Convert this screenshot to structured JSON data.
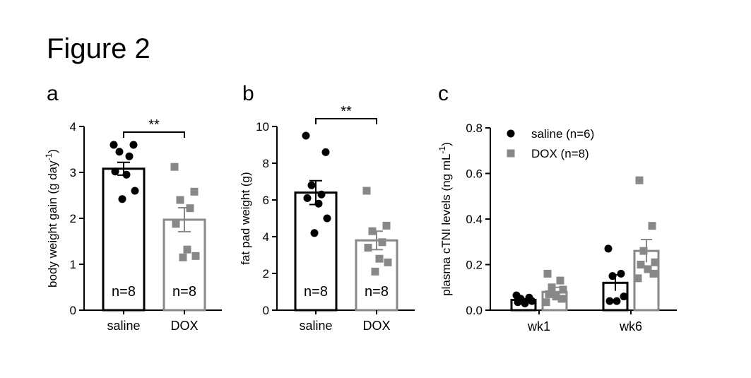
{
  "figure_title": "Figure 2",
  "colors": {
    "black": "#000000",
    "gray": "#888888"
  },
  "chart_data": [
    {
      "panel": "a",
      "type": "bar",
      "ylabel": "body weight gain (g day",
      "ylabel_sup": "-1",
      "ylabel_end": ")",
      "ylim": [
        0,
        4
      ],
      "yticks": [
        "0",
        "1",
        "2",
        "3",
        "4"
      ],
      "categories": [
        "saline",
        "DOX"
      ],
      "bars": [
        {
          "category": "saline",
          "mean": 3.08,
          "sem": 0.14,
          "color": "#000000",
          "marker": "circle",
          "n_label": "n=8",
          "points": [
            3.6,
            3.6,
            3.45,
            3.35,
            3.02,
            2.95,
            2.6,
            2.42
          ]
        },
        {
          "category": "DOX",
          "mean": 1.97,
          "sem": 0.26,
          "color": "#888888",
          "marker": "square",
          "n_label": "n=8",
          "points": [
            3.12,
            2.58,
            2.4,
            2.22,
            1.88,
            1.32,
            1.18,
            1.15
          ]
        }
      ],
      "significance": "**"
    },
    {
      "panel": "b",
      "type": "bar",
      "ylabel": "fat pad weight (g)",
      "ylim": [
        0,
        10
      ],
      "yticks": [
        "0",
        "2",
        "4",
        "6",
        "8",
        "10"
      ],
      "categories": [
        "saline",
        "DOX"
      ],
      "bars": [
        {
          "category": "saline",
          "mean": 6.4,
          "sem": 0.65,
          "color": "#000000",
          "marker": "circle",
          "n_label": "n=8",
          "points": [
            9.5,
            8.6,
            6.8,
            6.3,
            6.1,
            5.8,
            5.0,
            4.2
          ]
        },
        {
          "category": "DOX",
          "mean": 3.8,
          "sem": 0.5,
          "color": "#888888",
          "marker": "square",
          "n_label": "n=8",
          "points": [
            6.5,
            4.6,
            4.3,
            3.7,
            3.4,
            2.8,
            2.6,
            2.1
          ]
        }
      ],
      "significance": "**"
    },
    {
      "panel": "c",
      "type": "bar",
      "ylabel": "plasma cTNI levels (ng mL",
      "ylabel_sup": "-1",
      "ylabel_end": ")",
      "ylim": [
        0,
        0.8
      ],
      "yticks": [
        "0.0",
        "0.2",
        "0.4",
        "0.6",
        "0.8"
      ],
      "categories": [
        "wk1",
        "wk6"
      ],
      "series": [
        {
          "name": "saline (n=6)",
          "color": "#000000",
          "marker": "circle",
          "values": [
            0.045,
            0.12
          ],
          "sem": [
            0.005,
            0.035
          ],
          "points": [
            [
              0.065,
              0.055,
              0.05,
              0.04,
              0.035,
              0.03
            ],
            [
              0.27,
              0.16,
              0.15,
              0.06,
              0.04,
              0.04
            ]
          ]
        },
        {
          "name": "DOX (n=8)",
          "color": "#888888",
          "marker": "square",
          "values": [
            0.08,
            0.26
          ],
          "sem": [
            0.02,
            0.05
          ],
          "points": [
            [
              0.16,
              0.13,
              0.1,
              0.09,
              0.07,
              0.06,
              0.05,
              0.035
            ],
            [
              0.57,
              0.37,
              0.26,
              0.21,
              0.2,
              0.18,
              0.16,
              0.14
            ]
          ]
        }
      ],
      "legend_position": "top-left"
    }
  ]
}
